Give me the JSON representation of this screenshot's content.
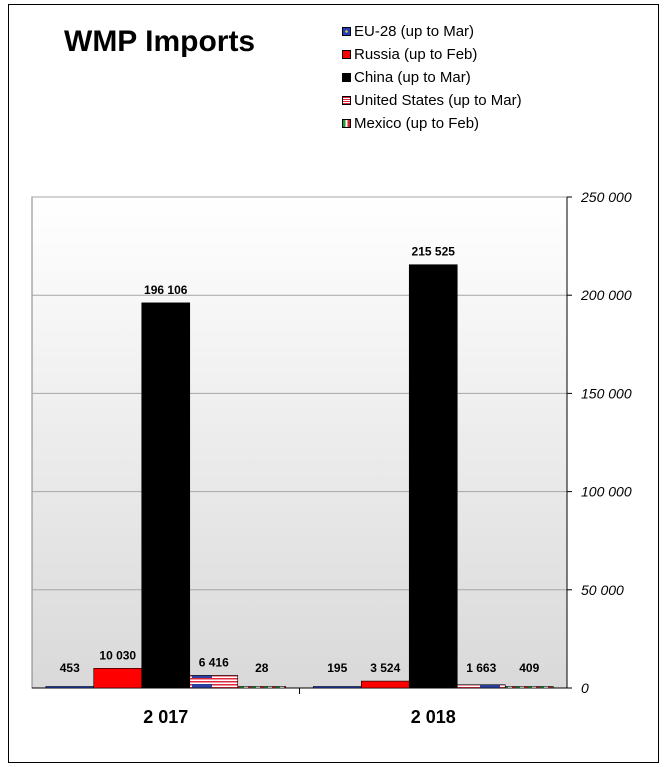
{
  "chart_data": {
    "type": "bar",
    "title": "WMP  Imports",
    "categories": [
      "2 017",
      "2 018"
    ],
    "series": [
      {
        "name": "EU-28 (up to Mar)",
        "values": [
          453,
          195
        ],
        "value_labels": [
          "453",
          "195"
        ],
        "color": "#1f3fbf",
        "icon": "eu-flag-swatch"
      },
      {
        "name": "Russia (up to Feb)",
        "values": [
          10030,
          3524
        ],
        "value_labels": [
          "10 030",
          "3 524"
        ],
        "color": "#ff0000",
        "icon": "red-swatch"
      },
      {
        "name": "China (up to Mar)",
        "values": [
          196106,
          215525
        ],
        "value_labels": [
          "196 106",
          "215 525"
        ],
        "color": "#000000",
        "icon": "black-swatch"
      },
      {
        "name": "United States (up to Mar)",
        "values": [
          6416,
          1663
        ],
        "value_labels": [
          "6 416",
          "1 663"
        ],
        "color": "#e8475b",
        "icon": "us-flag-swatch"
      },
      {
        "name": "Mexico (up to Feb)",
        "values": [
          28,
          409
        ],
        "value_labels": [
          "28",
          "409"
        ],
        "color": "#1a9e3a",
        "icon": "mexico-flag-swatch"
      }
    ],
    "ylim": [
      0,
      250000
    ],
    "y_ticks": [
      0,
      50000,
      100000,
      150000,
      200000,
      250000
    ],
    "y_tick_labels": [
      "0",
      "50 000",
      "100 000",
      "150 000",
      "200 000",
      "250 000"
    ],
    "y_axis_side": "right",
    "grid": true,
    "legend_position": "top-right",
    "background": "gradient white to light gray"
  }
}
